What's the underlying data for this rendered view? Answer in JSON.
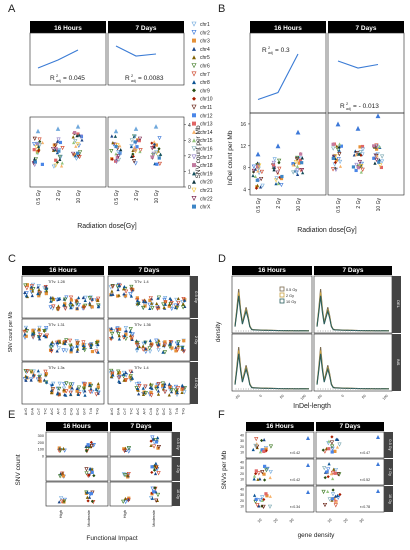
{
  "panels": {
    "A": {
      "letter": "A",
      "headers": [
        "16 Hours",
        "7 Days"
      ],
      "trend_16h": [
        0.3,
        0.5,
        0.75
      ],
      "trend_7d": [
        0.85,
        0.6,
        0.65
      ],
      "r2_16h": "0.045",
      "r2_7d": "0.0083",
      "ylabel": "SNV count per Mb",
      "yticks": [
        "0",
        "1",
        "2",
        "3",
        "4"
      ],
      "xlabel": "Radiation dose[Gy]",
      "xticks": [
        "0.5 Gy",
        "2 Gy",
        "10 Gy"
      ],
      "legend": [
        "chr1",
        "chr2",
        "chr3",
        "chr4",
        "chr5",
        "chr6",
        "chr7",
        "chr8",
        "chr9",
        "chr10",
        "chr11",
        "chr12",
        "chr13",
        "chr14",
        "chr15",
        "chr16",
        "chr17",
        "chr18",
        "chr19",
        "chr20",
        "chr21",
        "chr22",
        "chrX"
      ]
    },
    "B": {
      "letter": "B",
      "headers": [
        "16 Hours",
        "7 Days"
      ],
      "trend_16h": [
        0.15,
        0.25,
        0.8
      ],
      "trend_7d": [
        0.7,
        0.6,
        0.65
      ],
      "r2_16h": "0.3",
      "r2_7d": "- 0.013",
      "ylabel": "InDel count per Mb",
      "yticks": [
        "4",
        "8",
        "12",
        "16"
      ],
      "xlabel": "Radiation dose[Gy]",
      "xticks": [
        "0.5 Gy",
        "2 Gy",
        "10 Gy"
      ]
    },
    "C": {
      "letter": "C",
      "headers": [
        "16 Hours",
        "7 Days"
      ],
      "ylabel": "SNV count per Mb",
      "rows": [
        "0.5 Gy",
        "2 Gy",
        "10 Gy"
      ],
      "notes_16h": [
        "TiTv: 1.28",
        "TiTv: 1.31",
        "TiTv: 1.3s"
      ],
      "notes_7d": [
        "TiTv: 1.4",
        "TiTv: 1.36",
        "TiTv: 1.4"
      ],
      "mutations": [
        "A>G",
        "G>A",
        "C>T",
        "T>C",
        "A>C",
        "A>T",
        "C>A",
        "C>G",
        "G>C",
        "G>T",
        "T>A",
        "T>G"
      ]
    },
    "D": {
      "letter": "D",
      "headers": [
        "16 Hours",
        "7 Days"
      ],
      "ylabel": "density",
      "xlabel": "InDel-length",
      "strips": [
        "DEL",
        "INS"
      ],
      "legend": [
        "0.5 Gy",
        "2 Gy",
        "10 Gy"
      ],
      "xticks": [
        "-50",
        "0",
        "50",
        "100"
      ]
    },
    "E": {
      "letter": "E",
      "headers": [
        "16 Hours",
        "7 Days"
      ],
      "ylabel": "SNV count",
      "yticks": [
        "0",
        "100",
        "200",
        "300"
      ],
      "xlabel": "Functional Impact",
      "xticks": [
        "High",
        "Moderate"
      ],
      "strips": [
        "0.5 Gy",
        "2 Gy",
        "10 Gy"
      ]
    },
    "F": {
      "letter": "F",
      "headers": [
        "16 Hours",
        "7 Days"
      ],
      "ylabel": "SNVs per Mb",
      "yticks": [
        "10",
        "20",
        "30",
        "40"
      ],
      "xlabel": "gene density",
      "xticks": [
        "10",
        "20",
        "30"
      ],
      "strips": [
        "0.5 Gy",
        "2 Gy",
        "10 Gy"
      ],
      "notes_16h": [
        "r=0.42",
        "r=0.42",
        "r=0.34"
      ],
      "notes_7d": [
        "r=0.47",
        "r=0.52",
        "r=0.78"
      ]
    }
  },
  "chart_data": [
    {
      "type": "scatter",
      "title": "A",
      "categories": [
        "0.5 Gy",
        "2 Gy",
        "10 Gy"
      ],
      "xlabel": "Radiation dose[Gy]",
      "ylabel": "SNV count per Mb",
      "ylim": [
        0,
        4.5
      ]
    },
    {
      "type": "scatter",
      "title": "B",
      "categories": [
        "0.5 Gy",
        "2 Gy",
        "10 Gy"
      ],
      "xlabel": "Radiation dose[Gy]",
      "ylabel": "InDel count per Mb",
      "ylim": [
        3,
        18
      ]
    },
    {
      "type": "scatter",
      "title": "C",
      "categories": [
        "A>G",
        "G>A",
        "C>T",
        "T>C",
        "A>C",
        "A>T",
        "C>A",
        "C>G",
        "G>C",
        "G>T",
        "T>A",
        "T>G"
      ],
      "ylabel": "SNV count per Mb"
    },
    {
      "type": "area",
      "title": "D",
      "xlabel": "InDel-length",
      "ylabel": "density"
    },
    {
      "type": "scatter",
      "title": "E",
      "categories": [
        "High",
        "Moderate"
      ],
      "xlabel": "Functional Impact",
      "ylabel": "SNV count",
      "ylim": [
        0,
        350
      ]
    },
    {
      "type": "scatter",
      "title": "F",
      "xlabel": "gene density",
      "ylabel": "SNVs per Mb",
      "ylim": [
        0,
        45
      ]
    }
  ],
  "colors": {
    "header_bg": "#000000",
    "trend": "#3a7bd5",
    "dose_05": "#7a6a4f",
    "dose_2": "#c8a040",
    "dose_10": "#2a5d5d",
    "strip_bg": "#444444",
    "grid": "#e6e6e6"
  }
}
